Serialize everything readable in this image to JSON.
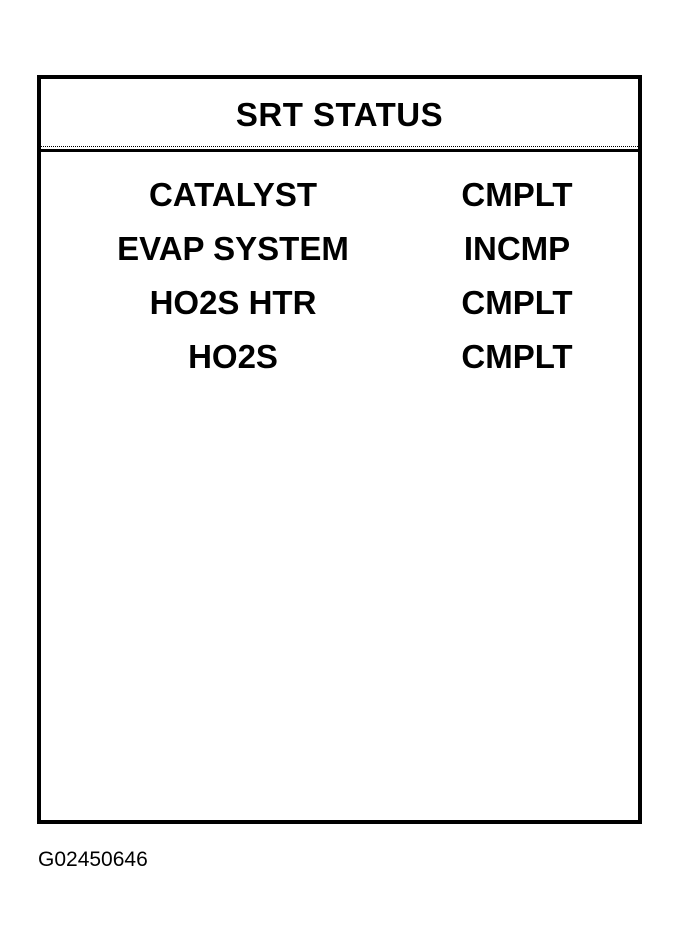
{
  "title": "SRT STATUS",
  "rows": [
    {
      "label": "CATALYST",
      "status": "CMPLT"
    },
    {
      "label": "EVAP SYSTEM",
      "status": "INCMP"
    },
    {
      "label": "HO2S HTR",
      "status": "CMPLT"
    },
    {
      "label": "HO2S",
      "status": "CMPLT"
    }
  ],
  "figure_id": "G02450646"
}
